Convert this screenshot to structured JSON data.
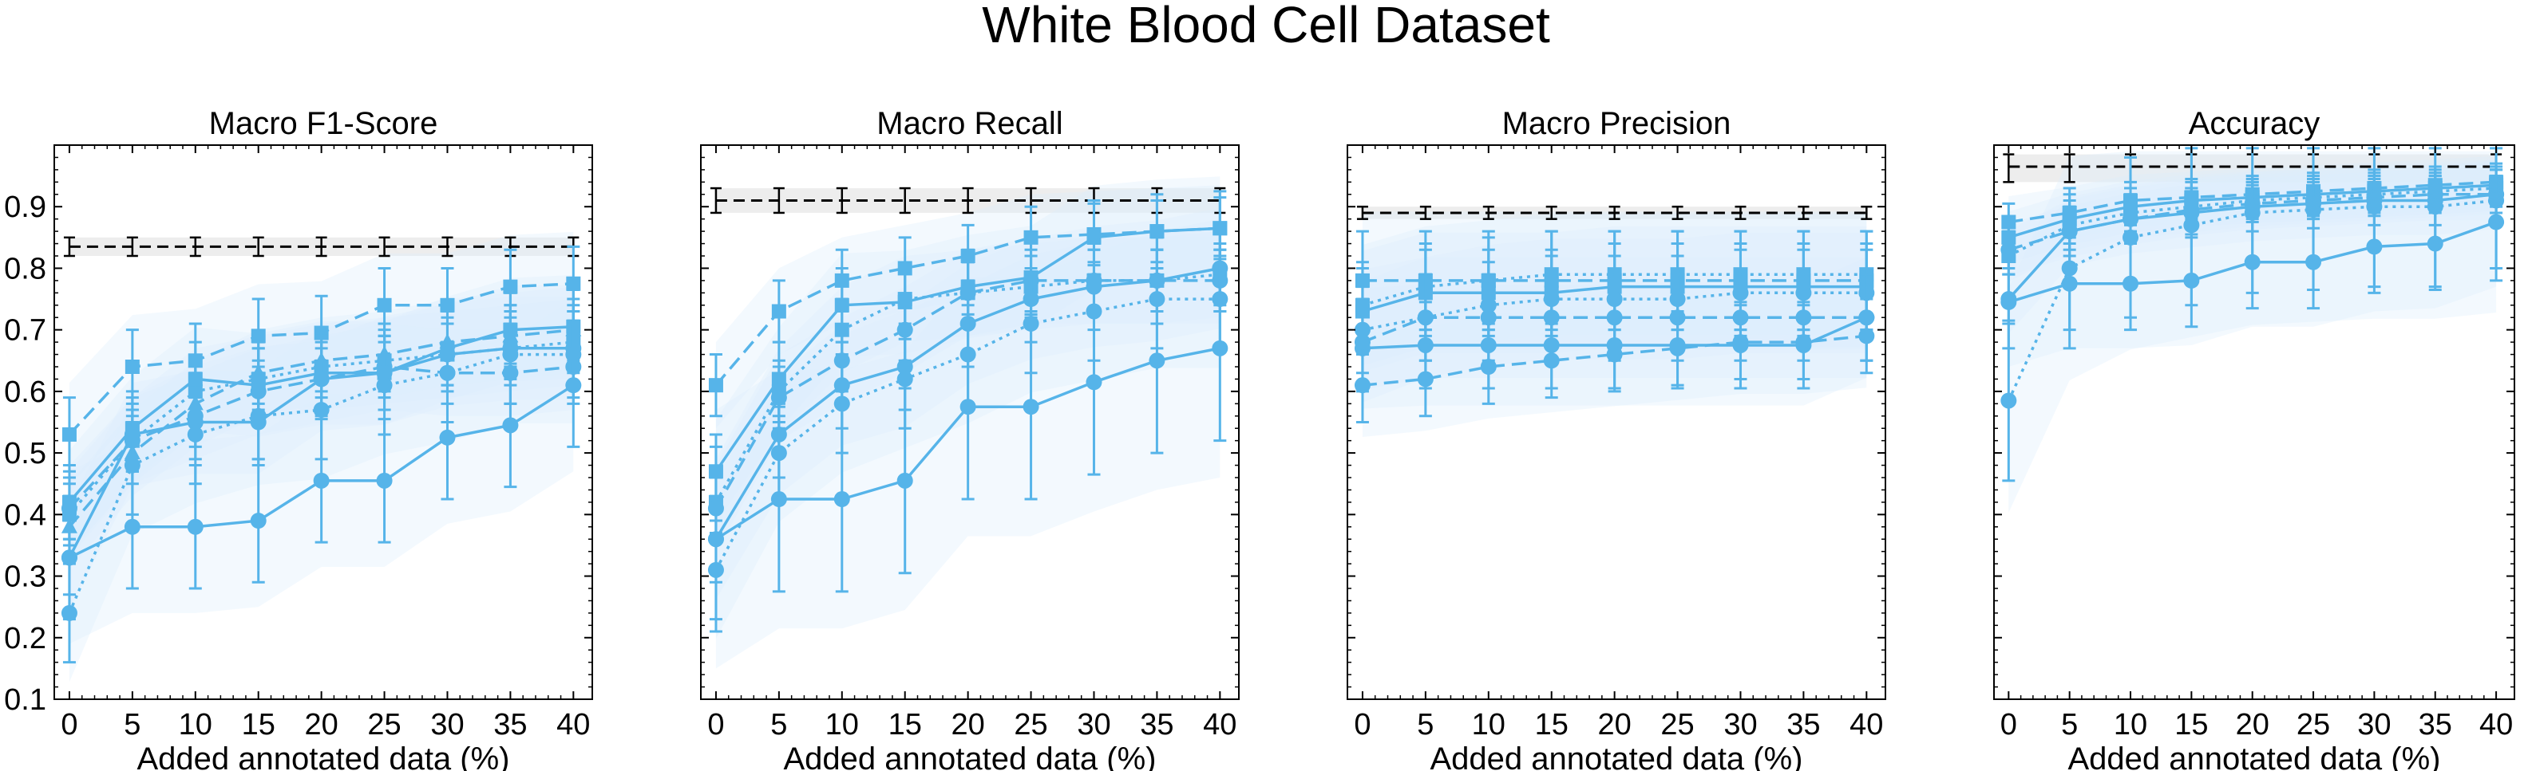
{
  "page_title": "White Blood Cell Dataset",
  "colors": {
    "series": "#56B4E9",
    "band": "#DCEEFB",
    "baseline": "#000000",
    "baseline_band": "#EDEDED"
  },
  "chart_data": [
    {
      "type": "line",
      "title": "Macro F1-Score",
      "xlabel": "Added annotated data (%)",
      "x": [
        0,
        5,
        10,
        15,
        20,
        25,
        30,
        35,
        40
      ],
      "ylim": [
        0.1,
        1.0
      ],
      "yticks": [
        0.1,
        0.2,
        0.3,
        0.4,
        0.5,
        0.6,
        0.7,
        0.8,
        0.9
      ],
      "grid": false,
      "baseline": {
        "value": 0.835,
        "band": [
          0.82,
          0.85
        ],
        "style": "dashed"
      },
      "series": [
        {
          "marker": "square",
          "style": "dashed",
          "values": [
            0.53,
            0.64,
            0.65,
            0.69,
            0.695,
            0.74,
            0.74,
            0.77,
            0.775
          ],
          "err": 0.06
        },
        {
          "marker": "square",
          "style": "solid",
          "values": [
            0.42,
            0.54,
            0.62,
            0.61,
            0.63,
            0.63,
            0.67,
            0.7,
            0.705
          ],
          "err": 0.06
        },
        {
          "marker": "square",
          "style": "dotted",
          "values": [
            0.4,
            0.52,
            0.6,
            0.62,
            0.64,
            0.65,
            0.66,
            0.67,
            0.68
          ],
          "err": 0.05
        },
        {
          "marker": "triangle",
          "style": "dashed",
          "values": [
            0.38,
            0.5,
            0.58,
            0.63,
            0.65,
            0.66,
            0.68,
            0.69,
            0.7
          ],
          "err": 0.05
        },
        {
          "marker": "circle",
          "style": "dashed",
          "values": [
            0.41,
            0.52,
            0.56,
            0.6,
            0.62,
            0.64,
            0.63,
            0.63,
            0.64
          ],
          "err": 0.05
        },
        {
          "marker": "circle",
          "style": "solid",
          "values": [
            0.33,
            0.53,
            0.55,
            0.55,
            0.62,
            0.63,
            0.66,
            0.67,
            0.67
          ],
          "err": 0.06
        },
        {
          "marker": "circle",
          "style": "dotted",
          "values": [
            0.24,
            0.48,
            0.53,
            0.56,
            0.57,
            0.61,
            0.63,
            0.66,
            0.66
          ],
          "err": 0.08
        },
        {
          "marker": "circle",
          "style": "solid",
          "values": [
            0.33,
            0.38,
            0.38,
            0.39,
            0.455,
            0.455,
            0.525,
            0.545,
            0.61
          ],
          "err": 0.1
        }
      ]
    },
    {
      "type": "line",
      "title": "Macro Recall",
      "xlabel": "Added annotated data (%)",
      "x": [
        0,
        5,
        10,
        15,
        20,
        25,
        30,
        35,
        40
      ],
      "ylim": [
        0.1,
        1.0
      ],
      "yticks": [
        0.1,
        0.2,
        0.3,
        0.4,
        0.5,
        0.6,
        0.7,
        0.8,
        0.9
      ],
      "grid": false,
      "baseline": {
        "value": 0.91,
        "band": [
          0.89,
          0.93
        ],
        "style": "dashed"
      },
      "series": [
        {
          "marker": "square",
          "style": "dashed",
          "values": [
            0.61,
            0.73,
            0.78,
            0.8,
            0.82,
            0.85,
            0.855,
            0.86,
            0.865
          ],
          "err": 0.05
        },
        {
          "marker": "square",
          "style": "solid",
          "values": [
            0.47,
            0.62,
            0.74,
            0.745,
            0.77,
            0.785,
            0.85,
            0.86,
            0.865
          ],
          "err": 0.06
        },
        {
          "marker": "square",
          "style": "dotted",
          "values": [
            0.42,
            0.6,
            0.7,
            0.75,
            0.76,
            0.77,
            0.78,
            0.78,
            0.79
          ],
          "err": 0.05
        },
        {
          "marker": "circle",
          "style": "dashed",
          "values": [
            0.41,
            0.59,
            0.65,
            0.7,
            0.76,
            0.78,
            0.78,
            0.78,
            0.78
          ],
          "err": 0.05
        },
        {
          "marker": "circle",
          "style": "solid",
          "values": [
            0.36,
            0.53,
            0.61,
            0.64,
            0.71,
            0.75,
            0.77,
            0.78,
            0.8
          ],
          "err": 0.07
        },
        {
          "marker": "circle",
          "style": "dotted",
          "values": [
            0.31,
            0.5,
            0.58,
            0.62,
            0.66,
            0.71,
            0.73,
            0.75,
            0.75
          ],
          "err": 0.08
        },
        {
          "marker": "circle",
          "style": "solid",
          "values": [
            0.36,
            0.425,
            0.425,
            0.455,
            0.575,
            0.575,
            0.615,
            0.65,
            0.67
          ],
          "err": 0.15
        }
      ]
    },
    {
      "type": "line",
      "title": "Macro Precision",
      "xlabel": "Added annotated data (%)",
      "x": [
        0,
        5,
        10,
        15,
        20,
        25,
        30,
        35,
        40
      ],
      "ylim": [
        0.1,
        1.0
      ],
      "yticks": [
        0.1,
        0.2,
        0.3,
        0.4,
        0.5,
        0.6,
        0.7,
        0.8,
        0.9
      ],
      "grid": false,
      "baseline": {
        "value": 0.89,
        "band": [
          0.88,
          0.9
        ],
        "style": "dashed"
      },
      "series": [
        {
          "marker": "square",
          "style": "dashed",
          "values": [
            0.78,
            0.78,
            0.78,
            0.78,
            0.78,
            0.78,
            0.78,
            0.78,
            0.78
          ],
          "err": 0.08
        },
        {
          "marker": "square",
          "style": "dotted",
          "values": [
            0.74,
            0.77,
            0.78,
            0.79,
            0.79,
            0.79,
            0.79,
            0.79,
            0.79
          ],
          "err": 0.07
        },
        {
          "marker": "square",
          "style": "solid",
          "values": [
            0.73,
            0.76,
            0.76,
            0.76,
            0.77,
            0.77,
            0.77,
            0.77,
            0.77
          ],
          "err": 0.07
        },
        {
          "marker": "circle",
          "style": "dotted",
          "values": [
            0.7,
            0.72,
            0.74,
            0.75,
            0.75,
            0.75,
            0.76,
            0.76,
            0.76
          ],
          "err": 0.07
        },
        {
          "marker": "circle",
          "style": "dashed",
          "values": [
            0.68,
            0.72,
            0.72,
            0.72,
            0.72,
            0.72,
            0.72,
            0.72,
            0.72
          ],
          "err": 0.07
        },
        {
          "marker": "circle",
          "style": "solid",
          "values": [
            0.67,
            0.675,
            0.675,
            0.675,
            0.675,
            0.675,
            0.675,
            0.675,
            0.72
          ],
          "err": 0.07
        },
        {
          "marker": "circle",
          "style": "dashed",
          "values": [
            0.61,
            0.62,
            0.64,
            0.65,
            0.66,
            0.67,
            0.68,
            0.68,
            0.69
          ],
          "err": 0.06
        }
      ]
    },
    {
      "type": "line",
      "title": "Accuracy",
      "xlabel": "Added annotated data (%)",
      "x": [
        0,
        5,
        10,
        15,
        20,
        25,
        30,
        35,
        40
      ],
      "ylim": [
        0.1,
        1.0
      ],
      "yticks": [
        0.1,
        0.2,
        0.3,
        0.4,
        0.5,
        0.6,
        0.7,
        0.8,
        0.9
      ],
      "grid": false,
      "baseline": {
        "value": 0.965,
        "band": [
          0.94,
          0.985
        ],
        "style": "dashed"
      },
      "series": [
        {
          "marker": "square",
          "style": "dashed",
          "values": [
            0.875,
            0.89,
            0.91,
            0.915,
            0.92,
            0.925,
            0.93,
            0.935,
            0.94
          ],
          "err": 0.03
        },
        {
          "marker": "square",
          "style": "solid",
          "values": [
            0.85,
            0.88,
            0.9,
            0.91,
            0.915,
            0.92,
            0.925,
            0.93,
            0.935
          ],
          "err": 0.03
        },
        {
          "marker": "square",
          "style": "dotted",
          "values": [
            0.82,
            0.87,
            0.89,
            0.9,
            0.91,
            0.915,
            0.92,
            0.925,
            0.93
          ],
          "err": 0.03
        },
        {
          "marker": "circle",
          "style": "dashed",
          "values": [
            0.83,
            0.86,
            0.88,
            0.895,
            0.905,
            0.91,
            0.915,
            0.92,
            0.92
          ],
          "err": 0.03
        },
        {
          "marker": "circle",
          "style": "solid",
          "values": [
            0.75,
            0.86,
            0.88,
            0.89,
            0.9,
            0.905,
            0.91,
            0.91,
            0.92
          ],
          "err": 0.04
        },
        {
          "marker": "circle",
          "style": "dotted",
          "values": [
            0.585,
            0.8,
            0.85,
            0.87,
            0.89,
            0.895,
            0.9,
            0.9,
            0.91
          ],
          "err": 0.13
        },
        {
          "marker": "circle",
          "style": "solid",
          "values": [
            0.745,
            0.775,
            0.775,
            0.78,
            0.81,
            0.81,
            0.835,
            0.84,
            0.875
          ],
          "err": 0.075
        }
      ]
    }
  ]
}
